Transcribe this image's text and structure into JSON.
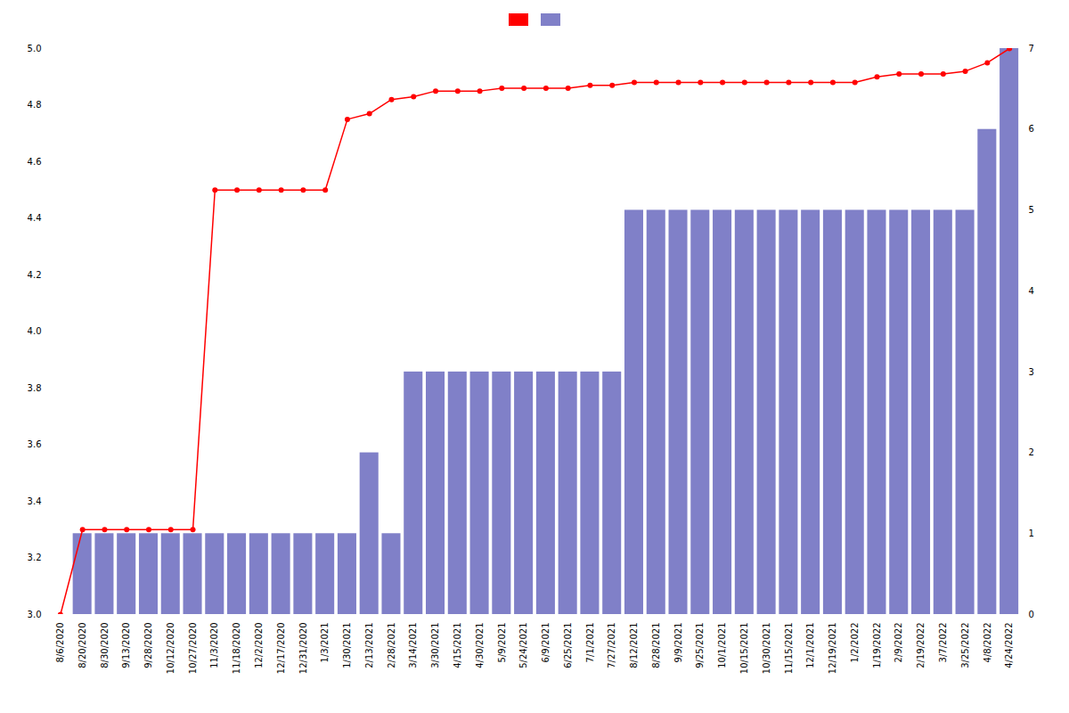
{
  "chart_data": {
    "type": "bar",
    "categories": [
      "8/6/2020",
      "8/20/2020",
      "8/30/2020",
      "9/13/2020",
      "9/28/2020",
      "10/12/2020",
      "10/27/2020",
      "11/3/2020",
      "11/18/2020",
      "12/2/2020",
      "12/17/2020",
      "12/31/2020",
      "1/3/2021",
      "1/30/2021",
      "2/13/2021",
      "2/28/2021",
      "3/14/2021",
      "3/30/2021",
      "4/15/2021",
      "4/30/2021",
      "5/9/2021",
      "5/24/2021",
      "6/9/2021",
      "6/25/2021",
      "7/1/2021",
      "7/27/2021",
      "8/12/2021",
      "8/28/2021",
      "9/9/2021",
      "9/25/2021",
      "10/1/2021",
      "10/15/2021",
      "10/30/2021",
      "11/15/2021",
      "12/1/2021",
      "12/19/2021",
      "1/2/2022",
      "1/19/2022",
      "2/9/2022",
      "2/19/2022",
      "3/7/2022",
      "3/25/2022",
      "4/8/2022",
      "4/24/2022"
    ],
    "series": [
      {
        "type": "line",
        "color": "#ff0000",
        "marker": "o",
        "values": [
          3.0,
          3.3,
          3.3,
          3.3,
          3.3,
          3.3,
          3.3,
          4.5,
          4.5,
          4.5,
          4.5,
          4.5,
          4.5,
          4.75,
          4.77,
          4.82,
          4.83,
          4.85,
          4.85,
          4.85,
          4.86,
          4.86,
          4.86,
          4.86,
          4.87,
          4.87,
          4.88,
          4.88,
          4.88,
          4.88,
          4.88,
          4.88,
          4.88,
          4.88,
          4.88,
          4.88,
          4.88,
          4.9,
          4.91,
          4.91,
          4.91,
          4.92,
          4.95,
          5.0
        ]
      },
      {
        "type": "bar",
        "color": "#8080c8",
        "axis": "y2",
        "values": [
          0,
          1,
          1,
          1,
          1,
          1,
          1,
          1,
          1,
          1,
          1,
          1,
          1,
          1,
          2,
          1,
          3,
          3,
          3,
          3,
          3,
          3,
          3,
          3,
          3,
          3,
          5,
          5,
          5,
          5,
          5,
          5,
          5,
          5,
          5,
          5,
          5,
          5,
          5,
          5,
          5,
          5,
          6,
          7
        ]
      }
    ],
    "ylim": [
      3.0,
      5.0
    ],
    "yticks": [
      {
        "value": 3.0,
        "label": "3.0"
      },
      3.2,
      3.4,
      3.6,
      3.8,
      {
        "value": 4.0,
        "label": "4.0"
      },
      4.2,
      4.4,
      4.6,
      4.8,
      {
        "value": 5.0,
        "label": "5.0"
      }
    ],
    "y2lim": [
      0,
      7
    ],
    "y2ticks": [
      0,
      1,
      2,
      3,
      4,
      5,
      6,
      7
    ],
    "grid": false,
    "legend": "top"
  }
}
